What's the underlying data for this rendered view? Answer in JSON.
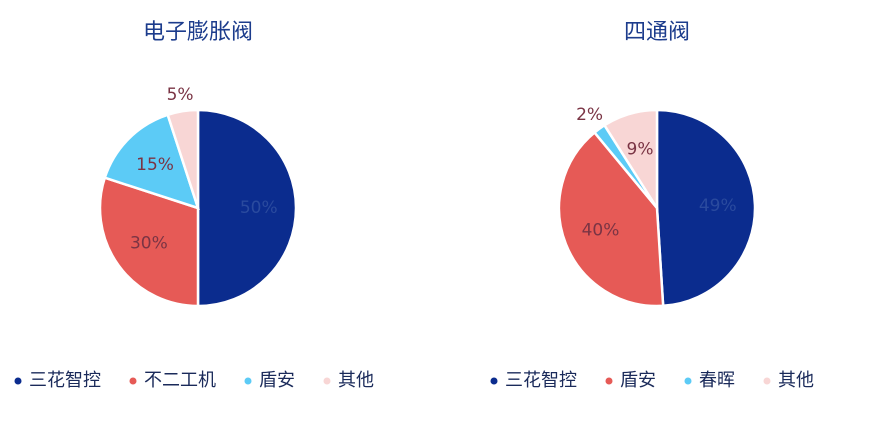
{
  "chart_data": [
    {
      "type": "pie",
      "title": "电子膨胀阀",
      "categories": [
        "三花智控",
        "不二工机",
        "盾安",
        "其他"
      ],
      "values": [
        50,
        30,
        15,
        5
      ],
      "value_labels": [
        "50%",
        "30%",
        "15%",
        "5%"
      ],
      "colors": [
        "#0b2c8e",
        "#e65a56",
        "#5ccbf6",
        "#f8d6d5"
      ]
    },
    {
      "type": "pie",
      "title": "四通阀",
      "categories": [
        "三花智控",
        "盾安",
        "春晖",
        "其他"
      ],
      "values": [
        49,
        40,
        2,
        9
      ],
      "value_labels": [
        "49%",
        "40%",
        "2%",
        "9%"
      ],
      "colors": [
        "#0b2c8e",
        "#e65a56",
        "#5ccbf6",
        "#f8d6d5"
      ]
    }
  ]
}
